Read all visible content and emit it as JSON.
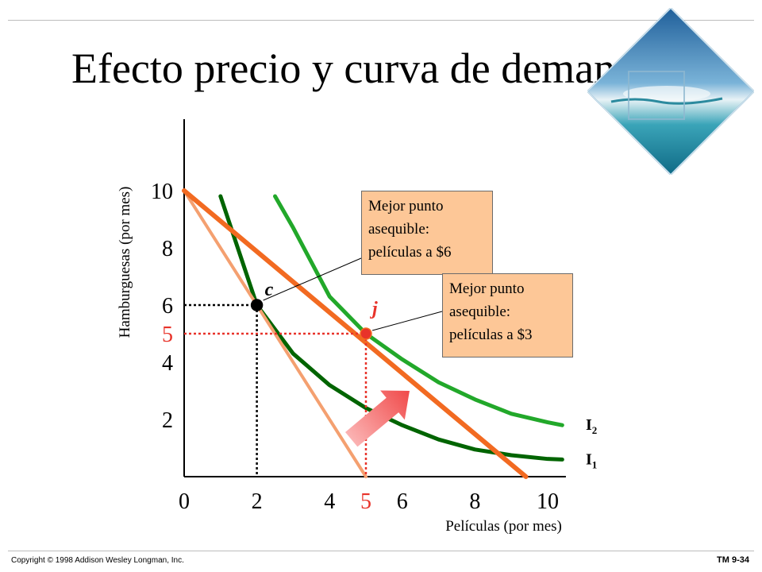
{
  "slide": {
    "title": "Efecto precio y curva de demanda",
    "footer_left": "Copyright © 1998 Addison Wesley Longman, Inc.",
    "footer_right": "TM 9-34"
  },
  "callouts": [
    {
      "lines": [
        "Mejor punto",
        "asequible:",
        "películas a $6"
      ]
    },
    {
      "lines": [
        "Mejor punto",
        "asequible:",
        "películas a $3"
      ]
    }
  ],
  "chart_data": {
    "type": "line",
    "xlabel": "Películas (por mes)",
    "ylabel": "Hamburguesas (por mes)",
    "xlim": [
      0,
      10.5
    ],
    "ylim": [
      0,
      12.5
    ],
    "x_ticks": [
      {
        "value": 0,
        "label": "0",
        "highlight": false
      },
      {
        "value": 2,
        "label": "2",
        "highlight": false
      },
      {
        "value": 4,
        "label": "4",
        "highlight": false
      },
      {
        "value": 5,
        "label": "5",
        "highlight": true
      },
      {
        "value": 6,
        "label": "6",
        "highlight": false
      },
      {
        "value": 8,
        "label": "8",
        "highlight": false
      },
      {
        "value": 10,
        "label": "10",
        "highlight": false
      }
    ],
    "y_ticks": [
      {
        "value": 2,
        "label": "2",
        "highlight": false
      },
      {
        "value": 4,
        "label": "4",
        "highlight": false
      },
      {
        "value": 5,
        "label": "5",
        "highlight": true
      },
      {
        "value": 6,
        "label": "6",
        "highlight": false
      },
      {
        "value": 8,
        "label": "8",
        "highlight": false
      },
      {
        "value": 10,
        "label": "10",
        "highlight": false
      }
    ],
    "budget_lines": [
      {
        "x": [
          0,
          5
        ],
        "y": [
          10,
          0
        ],
        "color": "#f4a070"
      },
      {
        "x": [
          0,
          9.4
        ],
        "y": [
          10,
          0
        ],
        "color": "#f26a21"
      }
    ],
    "indifference_curves": [
      {
        "name": "I1",
        "color": "#006400",
        "x": [
          1,
          2,
          3,
          4,
          5,
          6,
          7,
          8,
          9,
          10,
          10.4
        ],
        "y": [
          12.3,
          6,
          4.3,
          3.2,
          2.4,
          1.8,
          1.3,
          0.95,
          0.75,
          0.62,
          0.6
        ]
      },
      {
        "name": "I2",
        "color": "#22a82a",
        "x": [
          2.5,
          3,
          4,
          5,
          6,
          7,
          8,
          9,
          10,
          10.4
        ],
        "y": [
          12.3,
          8.7,
          6.3,
          5.0,
          4.1,
          3.3,
          2.7,
          2.2,
          1.9,
          1.8
        ]
      }
    ],
    "points": [
      {
        "label": "c",
        "x": 2,
        "y": 6,
        "color": "#000000",
        "label_color": "#000000",
        "guide_color": "#000000"
      },
      {
        "label": "j",
        "x": 5,
        "y": 5,
        "color": "#e8332a",
        "label_color": "#e8332a",
        "guide_color": "#e8332a"
      }
    ],
    "curve_labels": [
      {
        "text": "I",
        "subscript": "1",
        "x": 11.2,
        "y": 0.6
      },
      {
        "text": "I",
        "subscript": "2",
        "x": 11.2,
        "y": 1.8
      }
    ],
    "arrow": {
      "from": [
        4.6,
        1.3
      ],
      "to": [
        6.2,
        3.0
      ],
      "color": "#f26a6a"
    }
  }
}
